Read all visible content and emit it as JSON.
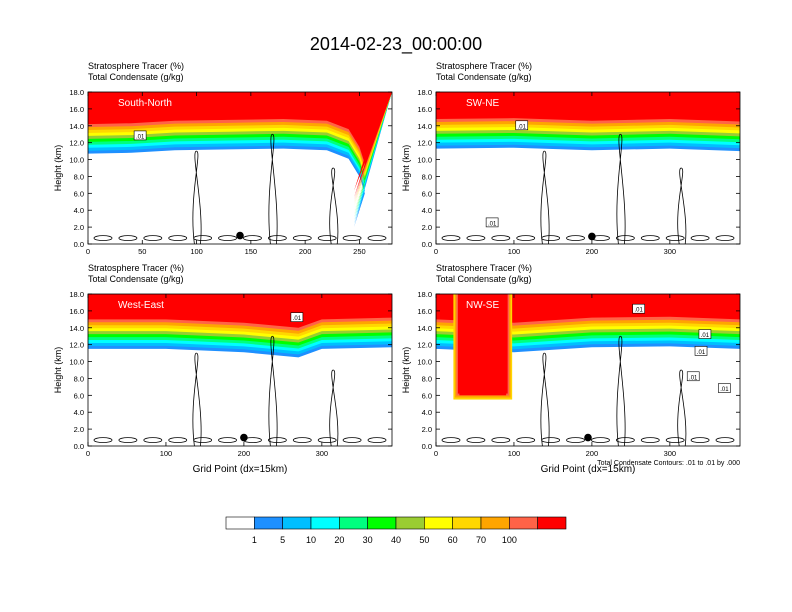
{
  "title": "2014-02-23_00:00:00",
  "chart_data": [
    {
      "type": "heatmap",
      "header_lines": [
        "Stratosphere Tracer   (%)",
        "Total Condensate   (g/kg)"
      ],
      "inset_label": "South-North",
      "ylabel": "Height (km)",
      "xlabel": "",
      "xlim": [
        0,
        280
      ],
      "ylim": [
        0,
        18
      ],
      "x_ticks": [
        0,
        50,
        100,
        150,
        200,
        250
      ],
      "y_ticks": [
        "0.0",
        "2.0",
        "4.0",
        "6.0",
        "8.0",
        "10.0",
        "12.0",
        "14.0",
        "16.0",
        "18.0"
      ],
      "tracer_upper_profile": [
        [
          0,
          14.2
        ],
        [
          40,
          14.3
        ],
        [
          80,
          14.6
        ],
        [
          130,
          14.7
        ],
        [
          180,
          14.8
        ],
        [
          220,
          14.6
        ],
        [
          240,
          13.6
        ],
        [
          250,
          11.5
        ],
        [
          255,
          9.5
        ],
        [
          250,
          7.5
        ],
        [
          245,
          5.5
        ]
      ],
      "tropopause_base_profile": [
        [
          0,
          14.0
        ],
        [
          280,
          14.0
        ]
      ],
      "contour_labels": [
        {
          "x": 48,
          "y": 12.8,
          "text": ".01"
        }
      ],
      "marker": {
        "x": 140,
        "y": 1.0
      }
    },
    {
      "type": "heatmap",
      "header_lines": [
        "Stratosphere Tracer   (%)",
        "Total Condensate   (g/kg)"
      ],
      "inset_label": "SW-NE",
      "ylabel": "Height (km)",
      "xlabel": "",
      "xlim": [
        0,
        390
      ],
      "ylim": [
        0,
        18
      ],
      "x_ticks": [
        0,
        100,
        200,
        300
      ],
      "y_ticks": [
        "0.0",
        "2.0",
        "4.0",
        "6.0",
        "8.0",
        "10.0",
        "12.0",
        "14.0",
        "16.0",
        "18.0"
      ],
      "tracer_upper_profile": [
        [
          0,
          14.8
        ],
        [
          100,
          14.9
        ],
        [
          200,
          14.6
        ],
        [
          300,
          14.8
        ],
        [
          390,
          14.5
        ]
      ],
      "tropopause_base_profile": [
        [
          0,
          14.0
        ],
        [
          390,
          14.0
        ]
      ],
      "contour_labels": [
        {
          "x": 110,
          "y": 14.0,
          "text": ".01"
        },
        {
          "x": 72,
          "y": 2.5,
          "text": ".01"
        }
      ],
      "marker": {
        "x": 200,
        "y": 0.9
      }
    },
    {
      "type": "heatmap",
      "header_lines": [
        "Stratosphere Tracer   (%)",
        "Total Condensate   (g/kg)"
      ],
      "inset_label": "West-East",
      "ylabel": "Height (km)",
      "xlabel": "Grid Point (dx=15km)",
      "xlim": [
        0,
        390
      ],
      "ylim": [
        0,
        18
      ],
      "x_ticks": [
        0,
        100,
        200,
        300
      ],
      "y_ticks": [
        "0.0",
        "2.0",
        "4.0",
        "6.0",
        "8.0",
        "10.0",
        "12.0",
        "14.0",
        "16.0",
        "18.0"
      ],
      "tracer_upper_profile": [
        [
          0,
          15.0
        ],
        [
          100,
          15.0
        ],
        [
          200,
          14.6
        ],
        [
          270,
          14.0
        ],
        [
          300,
          15.0
        ],
        [
          390,
          15.2
        ]
      ],
      "tropopause_base_profile": [
        [
          0,
          14.0
        ],
        [
          390,
          14.0
        ]
      ],
      "contour_labels": [
        {
          "x": 268,
          "y": 15.2,
          "text": ".01"
        }
      ],
      "marker": {
        "x": 200,
        "y": 1.0
      }
    },
    {
      "type": "heatmap",
      "header_lines": [
        "Stratosphere Tracer   (%)",
        "Total Condensate   (g/kg)"
      ],
      "inset_label": "NW-SE",
      "ylabel": "Height (km)",
      "xlabel": "Grid Point (dx=15km)",
      "footnote": "Total Condensate Contours: .01 to .01 by .000",
      "xlim": [
        0,
        390
      ],
      "ylim": [
        0,
        18
      ],
      "x_ticks": [
        0,
        100,
        200,
        300
      ],
      "y_ticks": [
        "0.0",
        "2.0",
        "4.0",
        "6.0",
        "8.0",
        "10.0",
        "12.0",
        "14.0",
        "16.0",
        "18.0"
      ],
      "tracer_upper_profile": [
        [
          0,
          15.0
        ],
        [
          100,
          14.6
        ],
        [
          200,
          15.2
        ],
        [
          300,
          15.3
        ],
        [
          390,
          15.0
        ]
      ],
      "tropopause_base_profile": [
        [
          0,
          14.0
        ],
        [
          390,
          14.0
        ]
      ],
      "intrusion": {
        "x_start": 30,
        "x_end": 90,
        "bottom": 5.5
      },
      "contour_labels": [
        {
          "x": 260,
          "y": 16.2,
          "text": ".01"
        },
        {
          "x": 345,
          "y": 13.2,
          "text": ".01"
        },
        {
          "x": 340,
          "y": 11.2,
          "text": ".01"
        },
        {
          "x": 330,
          "y": 8.2,
          "text": ".01"
        },
        {
          "x": 370,
          "y": 6.8,
          "text": ".01"
        }
      ],
      "marker": {
        "x": 195,
        "y": 1.0
      }
    }
  ],
  "colorbar": {
    "colors": [
      "#ffffff",
      "#1e90ff",
      "#00bfff",
      "#00ffff",
      "#00ff7f",
      "#00ff00",
      "#9acd32",
      "#ffff00",
      "#ffd700",
      "#ffa500",
      "#ff6347",
      "#ff0000"
    ],
    "labels": [
      "1",
      "5",
      "10",
      "20",
      "30",
      "40",
      "50",
      "60",
      "70",
      "100"
    ]
  }
}
